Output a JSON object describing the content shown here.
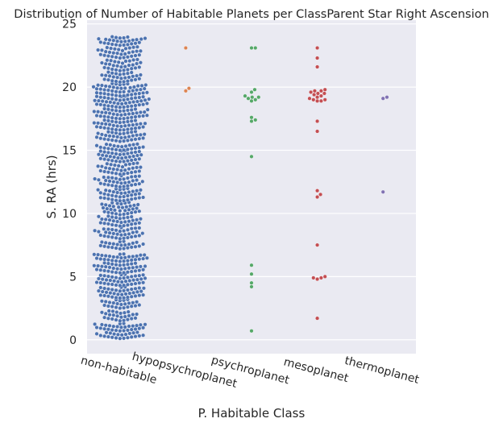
{
  "chart_data": {
    "type": "scatter",
    "subtype": "swarm",
    "title": "Distribution of Number of Habitable Planets per ClassParent Star Right Ascension",
    "xlabel": "P. Habitable Class",
    "ylabel": "S. RA (hrs)",
    "categories": [
      "non-habitable",
      "hypopsychroplanet",
      "psychroplanet",
      "mesoplanet",
      "thermoplanet"
    ],
    "colors": [
      "#4c72b0",
      "#dd8452",
      "#55a868",
      "#c44e52",
      "#8172b3"
    ],
    "ylim": [
      -1.1,
      25.3
    ],
    "yticks": [
      0,
      5,
      10,
      15,
      20,
      25
    ],
    "grid": true,
    "background": "#eaeaf2",
    "series": [
      {
        "category": "non-habitable",
        "band_ranges": [
          [
            0.1,
            0.6
          ],
          [
            0.7,
            1.3
          ],
          [
            1.5,
            2.3
          ],
          [
            2.5,
            3.2
          ],
          [
            3.3,
            4.2
          ],
          [
            4.3,
            5.2
          ],
          [
            5.3,
            6.1
          ],
          [
            6.2,
            6.8
          ],
          [
            7.2,
            7.8
          ],
          [
            8.0,
            8.9
          ],
          [
            9.0,
            9.8
          ],
          [
            9.9,
            10.9
          ],
          [
            11.0,
            12.0
          ],
          [
            12.1,
            13.0
          ],
          [
            13.1,
            14.0
          ],
          [
            14.1,
            15.0
          ],
          [
            15.0,
            15.5
          ],
          [
            15.7,
            16.5
          ],
          [
            16.6,
            17.4
          ],
          [
            17.5,
            18.3
          ],
          [
            18.4,
            19.3
          ],
          [
            19.3,
            20.3
          ],
          [
            20.4,
            21.2
          ],
          [
            21.3,
            22.2
          ],
          [
            22.3,
            23.2
          ],
          [
            23.3,
            24.0
          ]
        ],
        "band_counts": [
          22,
          28,
          25,
          24,
          38,
          40,
          36,
          30,
          24,
          34,
          30,
          34,
          38,
          34,
          32,
          36,
          22,
          34,
          36,
          38,
          44,
          46,
          28,
          30,
          32,
          28
        ]
      },
      {
        "category": "hypopsychroplanet",
        "values": [
          23.1,
          19.9,
          19.7
        ]
      },
      {
        "category": "psychroplanet",
        "values": [
          23.1,
          23.1,
          19.8,
          19.6,
          19.3,
          19.2,
          19.2,
          19.1,
          19.0,
          18.9,
          17.6,
          17.4,
          17.3,
          14.5,
          5.9,
          5.2,
          4.5,
          4.2,
          0.7
        ]
      },
      {
        "category": "mesoplanet",
        "values": [
          23.1,
          22.3,
          21.6,
          19.8,
          19.7,
          19.7,
          19.6,
          19.5,
          19.5,
          19.4,
          19.3,
          19.2,
          19.1,
          19.0,
          19.0,
          18.9,
          18.9,
          17.3,
          16.5,
          11.8,
          11.5,
          11.3,
          7.5,
          5.0,
          4.9,
          4.8,
          4.9,
          1.7
        ]
      },
      {
        "category": "thermoplanet",
        "values": [
          19.2,
          19.1,
          11.7
        ]
      }
    ]
  }
}
